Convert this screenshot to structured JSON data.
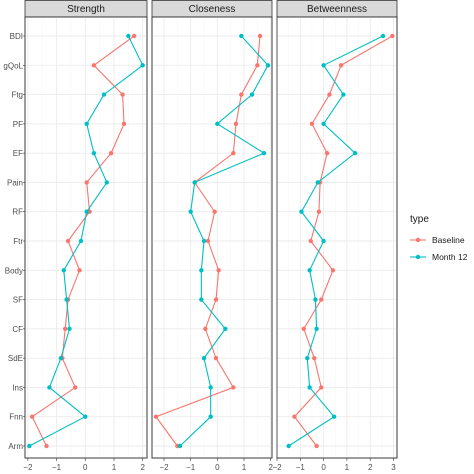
{
  "chart_data": {
    "type": "line",
    "facets": [
      "Strength",
      "Closeness",
      "Betweenness"
    ],
    "categories": [
      "BDI",
      "gQoL",
      "Ftg",
      "PF",
      "EF",
      "Pain",
      "RF",
      "Ftr",
      "Body",
      "SF",
      "CF",
      "SdE",
      "Ins",
      "Fnn",
      "Arm"
    ],
    "legend": {
      "title": "type",
      "position": "right"
    },
    "series": [
      {
        "name": "Baseline",
        "color": "#F8766D",
        "values": {
          "Strength": [
            1.7,
            0.3,
            1.3,
            1.35,
            0.9,
            0.05,
            0.15,
            -0.6,
            -0.2,
            -0.6,
            -0.7,
            -0.8,
            -0.35,
            -1.85,
            -1.35
          ],
          "Closeness": [
            1.6,
            1.5,
            0.9,
            0.7,
            0.6,
            -0.85,
            -0.1,
            -0.35,
            0.05,
            -0.05,
            -0.45,
            -0.05,
            0.6,
            -2.3,
            -1.5
          ],
          "Betweenness": [
            2.95,
            0.75,
            0.25,
            -0.5,
            0.15,
            -0.15,
            -0.2,
            -0.55,
            0.4,
            -0.1,
            -0.85,
            -0.4,
            -0.1,
            -1.25,
            -0.3
          ]
        }
      },
      {
        "name": "Month 12",
        "color": "#00BFC4",
        "values": {
          "Strength": [
            1.5,
            2.0,
            0.65,
            0.05,
            0.3,
            0.75,
            0.05,
            -0.15,
            -0.75,
            -0.65,
            -0.55,
            -0.85,
            -1.25,
            0.0,
            -1.95
          ],
          "Closeness": [
            0.9,
            1.9,
            1.3,
            0.0,
            1.75,
            -0.85,
            -1.0,
            -0.5,
            -0.6,
            -0.6,
            0.3,
            -0.5,
            -0.25,
            -0.25,
            -1.4
          ],
          "Betweenness": [
            2.55,
            0.0,
            0.85,
            0.0,
            1.35,
            -0.25,
            -0.95,
            0.0,
            -0.6,
            -0.35,
            -0.3,
            -0.7,
            -0.6,
            0.45,
            -1.5
          ]
        }
      }
    ],
    "x_ticks": [
      -2,
      -1,
      0,
      1,
      2,
      3
    ],
    "xlim": {
      "Strength": [
        -2.1,
        2.15
      ],
      "Closeness": [
        -2.45,
        2.05
      ],
      "Betweenness": [
        -2.0,
        3.15
      ]
    },
    "grid": true
  }
}
